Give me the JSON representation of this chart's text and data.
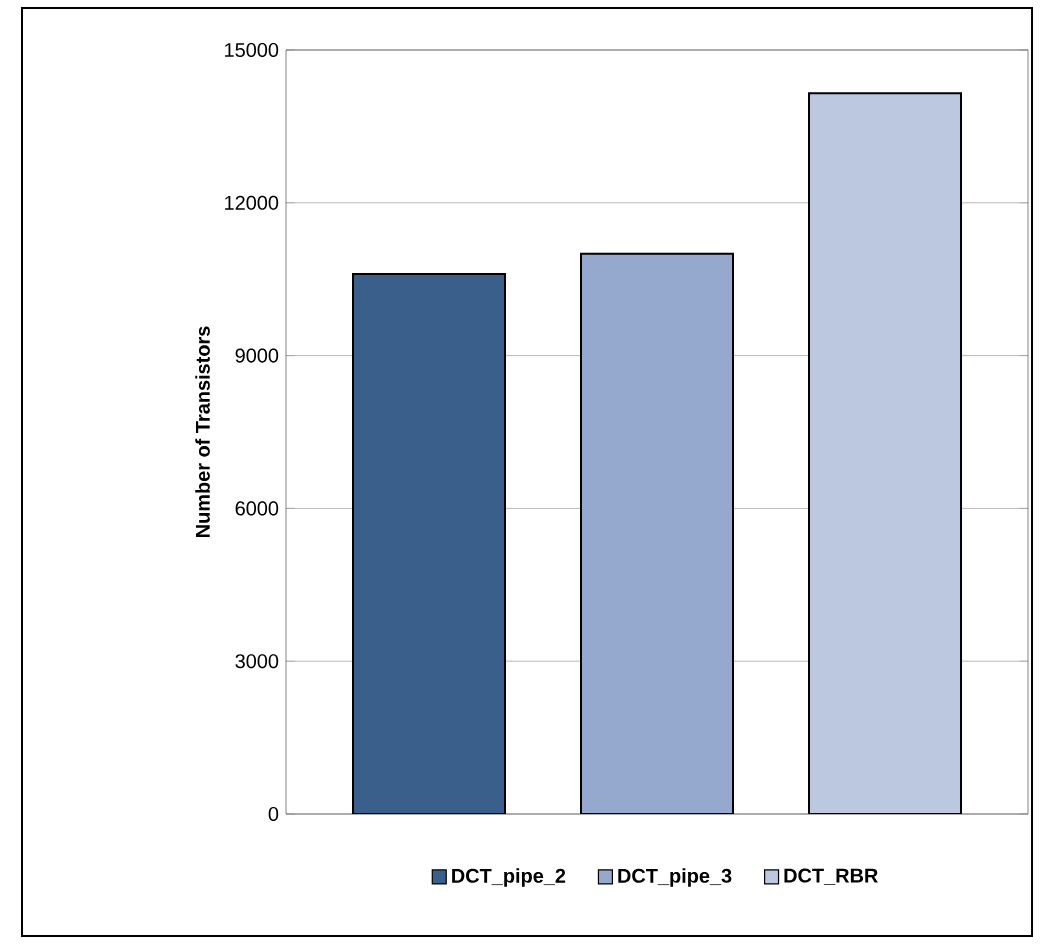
{
  "chart_data": {
    "type": "bar",
    "ylabel": "Number of Transistors",
    "categories": [
      null
    ],
    "series": [
      {
        "name": "DCT_pipe_2",
        "color": "#3a5f8a",
        "values": [
          10600
        ]
      },
      {
        "name": "DCT_pipe_3",
        "color": "#95a9cf",
        "values": [
          11000
        ]
      },
      {
        "name": "DCT_RBR",
        "color": "#bcc8e0",
        "values": [
          14150
        ]
      }
    ],
    "ylim": [
      0,
      15000
    ],
    "yticks": [
      0,
      3000,
      6000,
      9000,
      12000,
      15000
    ],
    "grid": "y",
    "legend": "bottom"
  }
}
